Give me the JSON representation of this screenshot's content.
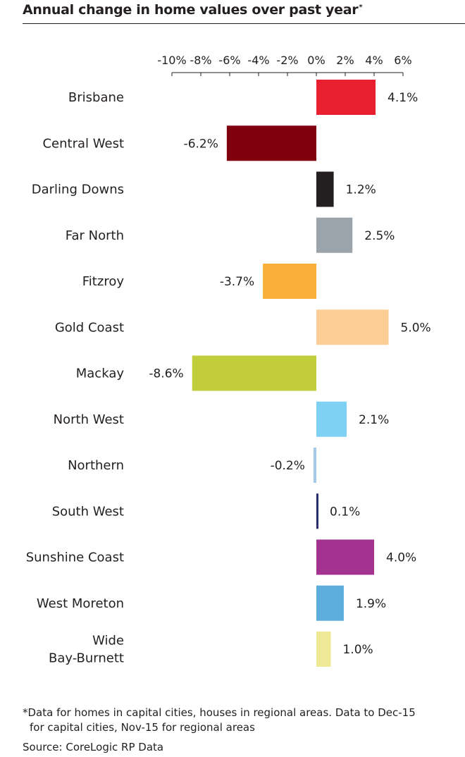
{
  "chart_data": {
    "type": "bar",
    "orientation": "horizontal",
    "title": "Annual change in home values over past year",
    "title_marker": "*",
    "categories": [
      "Brisbane",
      "Central West",
      "Darling Downs",
      "Far North",
      "Fitzroy",
      "Gold Coast",
      "Mackay",
      "North West",
      "Northern",
      "South West",
      "Sunshine Coast",
      "West Moreton",
      "Wide Bay-Burnett"
    ],
    "category_lines": [
      [
        "Brisbane"
      ],
      [
        "Central West"
      ],
      [
        "Darling Downs"
      ],
      [
        "Far North"
      ],
      [
        "Fitzroy"
      ],
      [
        "Gold Coast"
      ],
      [
        "Mackay"
      ],
      [
        "North West"
      ],
      [
        "Northern"
      ],
      [
        "South West"
      ],
      [
        "Sunshine Coast"
      ],
      [
        "West Moreton"
      ],
      [
        "Wide",
        "Bay-Burnett"
      ]
    ],
    "values": [
      4.1,
      -6.2,
      1.2,
      2.5,
      -3.7,
      5.0,
      -8.6,
      2.1,
      -0.2,
      0.1,
      4.0,
      1.9,
      1.0
    ],
    "value_labels": [
      "4.1%",
      "-6.2%",
      "1.2%",
      "2.5%",
      "-3.7%",
      "5.0%",
      "-8.6%",
      "2.1%",
      "-0.2%",
      "0.1%",
      "4.0%",
      "1.9%",
      "1.0%"
    ],
    "colors": [
      "#e8202f",
      "#810010",
      "#231f20",
      "#9aa4aa",
      "#f8ae37",
      "#fdcd96",
      "#c1cd3b",
      "#7fd1f3",
      "#a6c8e9",
      "#282c70",
      "#a3338f",
      "#5daedc",
      "#ede994"
    ],
    "xlim": [
      -10,
      6
    ],
    "ticks": [
      -10,
      -8,
      -6,
      -4,
      -2,
      0,
      2,
      4,
      6
    ],
    "tick_labels": [
      "-10%",
      "-8%",
      "-6%",
      "-4%",
      "-2%",
      "0%",
      "2%",
      "4%",
      "6%"
    ],
    "axis_position": "top",
    "grid": false
  },
  "footnote_lines": [
    "*Data for homes in capital cities, houses in regional areas. Data to Dec-15",
    "for capital cities, Nov-15 for regional areas"
  ],
  "source": "Source: CoreLogic RP Data"
}
